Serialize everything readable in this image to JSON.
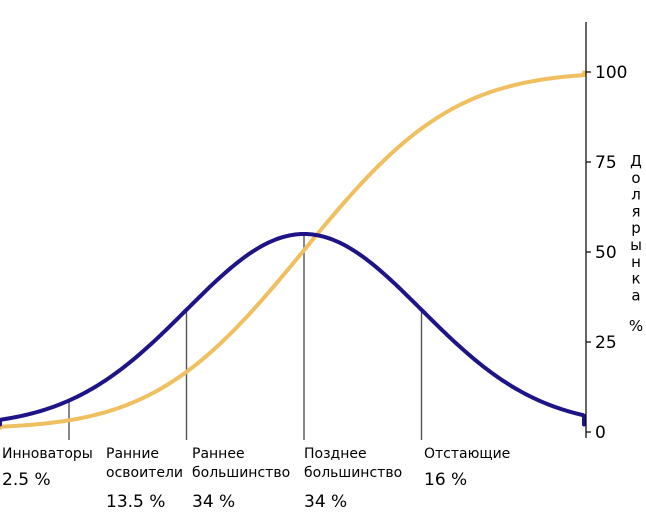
{
  "chart_data": {
    "type": "line",
    "x_unit_label": "",
    "ylabel": "Доля рынка %",
    "ylim": [
      0,
      110
    ],
    "y_ticks": [
      0,
      25,
      50,
      75,
      100
    ],
    "grid": false,
    "legend": "none",
    "colors": {
      "adoption_curve": "#1e1487",
      "cumulative_curve": "#f0c060",
      "divider": "#555555",
      "axis": "#000000"
    },
    "series": [
      {
        "key": "adoption",
        "kind": "bell",
        "description_hint": "",
        "mean_sd": 0,
        "peak_value": 55,
        "baseline_value": 1.5,
        "range_sd": [
          -3,
          3
        ]
      },
      {
        "key": "cumulative",
        "kind": "s-curve",
        "start_value": 1,
        "end_value": 100,
        "range_sd": [
          -3,
          3
        ]
      }
    ],
    "dividers_sd": [
      -2,
      -1,
      0,
      1
    ],
    "segments": [
      {
        "name_lines": [
          "Инноваторы"
        ],
        "percent": "2.5 %"
      },
      {
        "name_lines": [
          "Ранние",
          "освоители"
        ],
        "percent": "13.5 %"
      },
      {
        "name_lines": [
          "Раннее",
          "большинство"
        ],
        "percent": "34 %"
      },
      {
        "name_lines": [
          "Позднее",
          "большинство"
        ],
        "percent": "34 %"
      },
      {
        "name_lines": [
          "Отстающие"
        ],
        "percent": "16 %"
      }
    ]
  }
}
